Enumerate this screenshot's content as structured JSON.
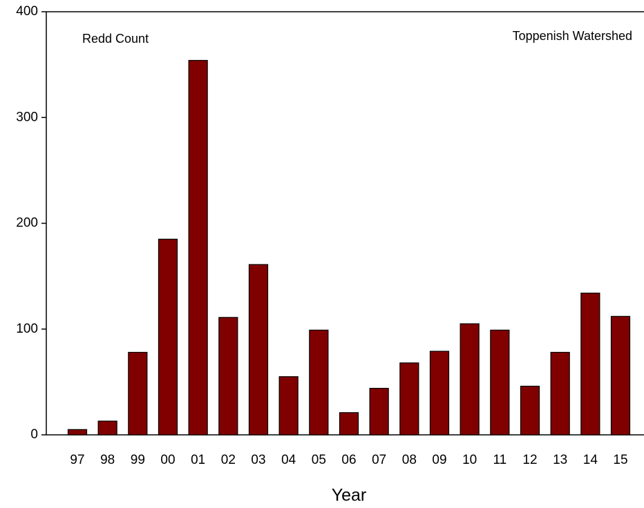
{
  "chart_data": {
    "type": "bar",
    "annotations": [
      "Redd Count",
      "Toppenish Watershed"
    ],
    "x_label": "Year",
    "categories": [
      "97",
      "98",
      "99",
      "00",
      "01",
      "02",
      "03",
      "04",
      "05",
      "06",
      "07",
      "08",
      "09",
      "10",
      "11",
      "12",
      "13",
      "14",
      "15"
    ],
    "values": [
      5,
      13,
      78,
      185,
      354,
      111,
      161,
      55,
      99,
      21,
      44,
      68,
      79,
      105,
      99,
      46,
      78,
      134,
      112
    ],
    "color": "#800000",
    "ylim": [
      0,
      400
    ],
    "yticks": [
      0,
      100,
      200,
      300,
      400
    ],
    "grid": false
  }
}
